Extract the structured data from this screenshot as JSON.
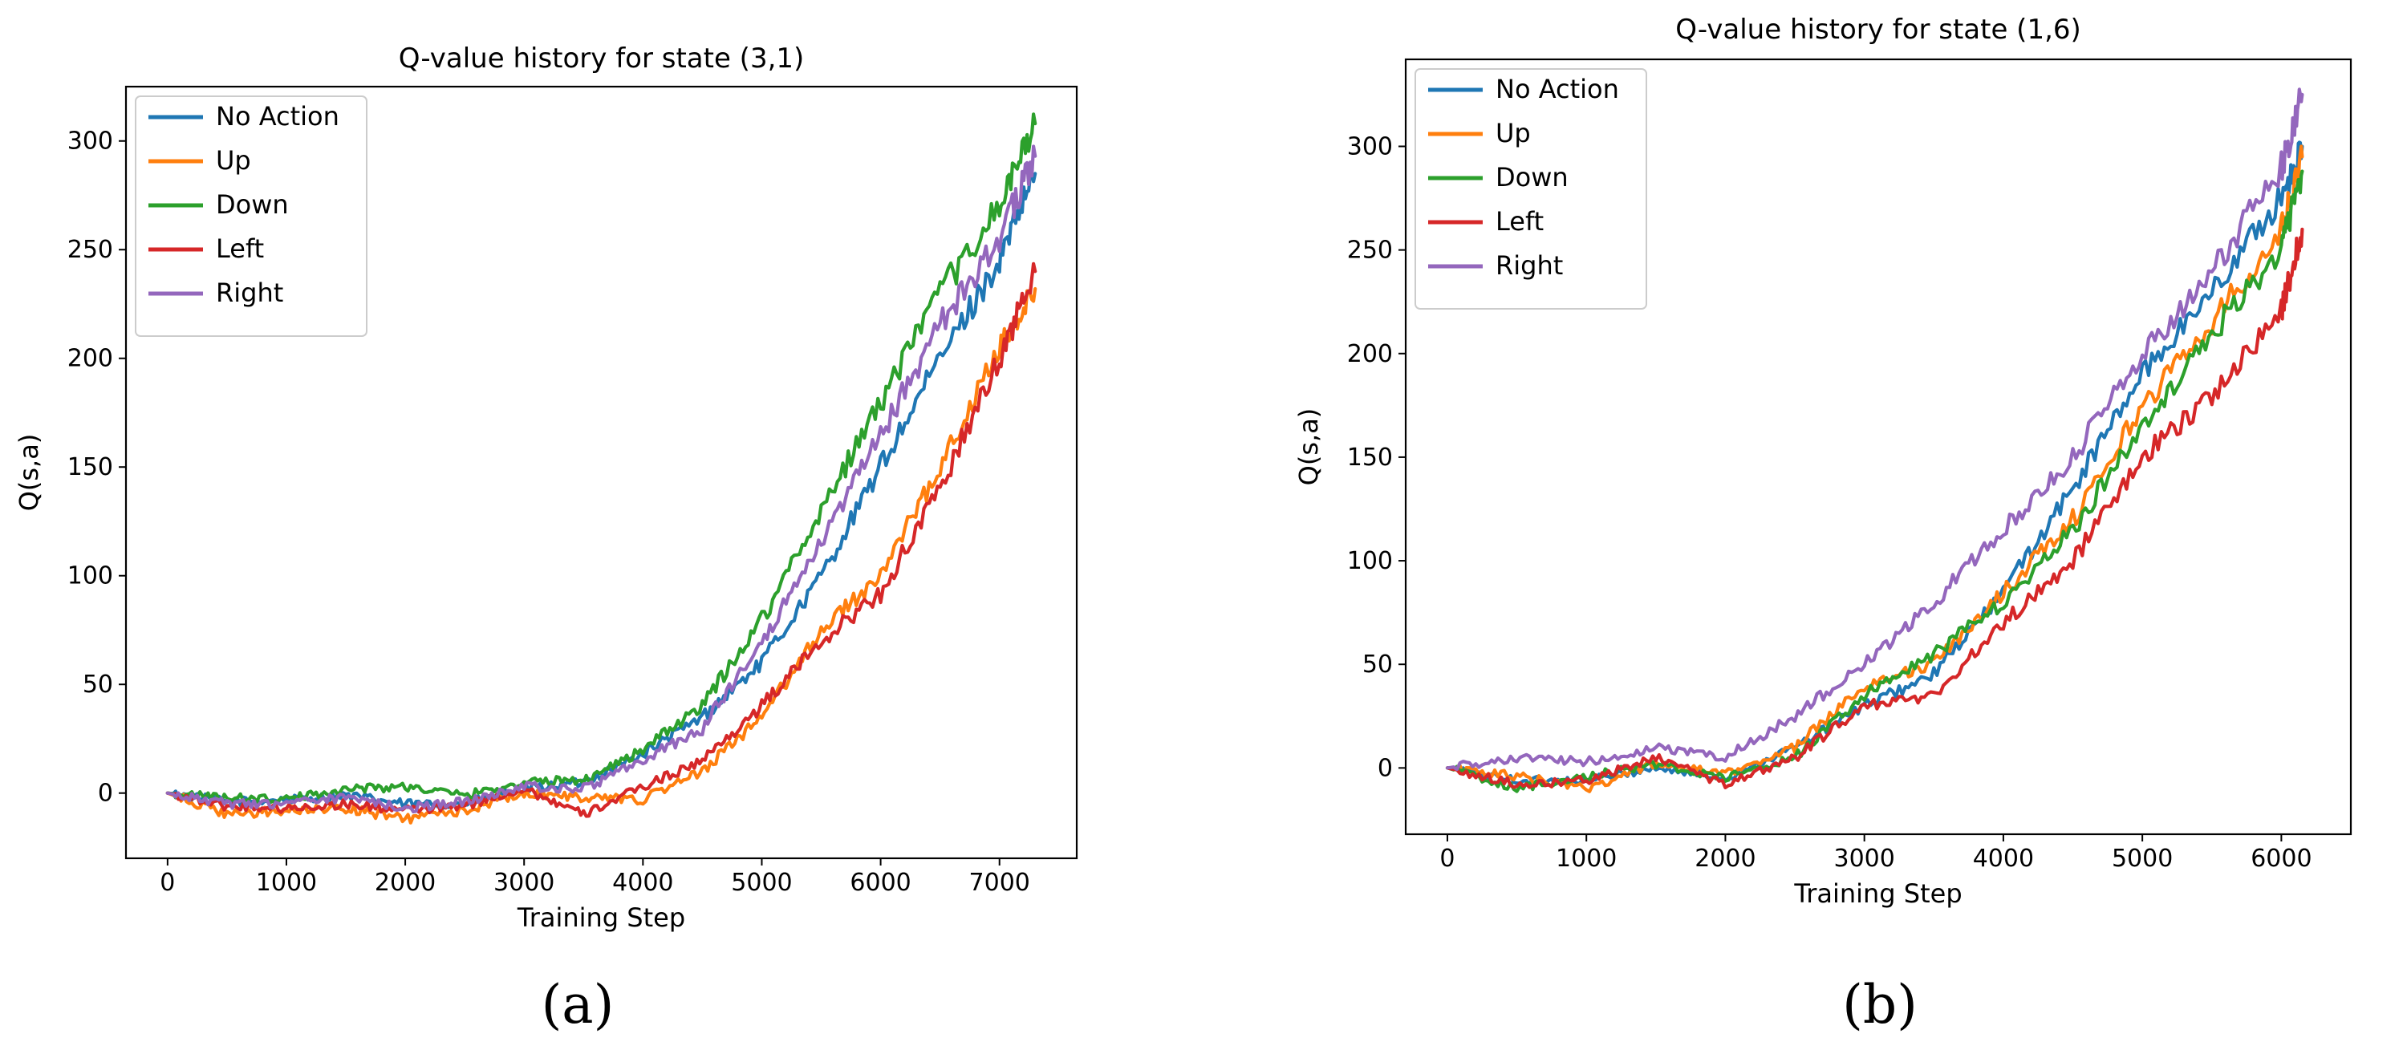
{
  "colors": {
    "no_action": "#1f77b4",
    "up": "#ff7f0e",
    "down": "#2ca02c",
    "left": "#d62728",
    "right": "#9467bd"
  },
  "chart_data": [
    {
      "type": "line",
      "panel_label": "(a)",
      "title": "Q-value history for state (3,1)",
      "xlabel": "Training Step",
      "ylabel": "Q(s,a)",
      "xlim": [
        -350,
        7650
      ],
      "ylim": [
        -30,
        325
      ],
      "xticks": [
        0,
        1000,
        2000,
        3000,
        4000,
        5000,
        6000,
        7000
      ],
      "yticks": [
        0,
        50,
        100,
        150,
        200,
        250,
        300
      ],
      "legend_position": "upper-left",
      "x": [
        0,
        500,
        1000,
        1500,
        2000,
        2500,
        3000,
        3500,
        4000,
        4500,
        5000,
        5500,
        6000,
        6500,
        7000,
        7300
      ],
      "series": [
        {
          "name": "No Action",
          "color_key": "no_action",
          "values": [
            0,
            -4,
            -3,
            -1,
            -5,
            -5,
            2,
            5,
            18,
            35,
            60,
            100,
            150,
            200,
            245,
            285
          ]
        },
        {
          "name": "Up",
          "color_key": "up",
          "values": [
            0,
            -10,
            -8,
            -7,
            -12,
            -8,
            0,
            -2,
            -3,
            10,
            35,
            75,
            100,
            150,
            205,
            232
          ]
        },
        {
          "name": "Down",
          "color_key": "down",
          "values": [
            0,
            -2,
            -3,
            2,
            3,
            -1,
            5,
            6,
            20,
            40,
            80,
            130,
            180,
            230,
            270,
            308
          ]
        },
        {
          "name": "Left",
          "color_key": "left",
          "values": [
            0,
            -6,
            -7,
            -5,
            -8,
            -6,
            2,
            -10,
            3,
            15,
            40,
            70,
            92,
            140,
            200,
            240
          ]
        },
        {
          "name": "Right",
          "color_key": "right",
          "values": [
            0,
            -5,
            -5,
            -2,
            -7,
            -4,
            3,
            2,
            15,
            30,
            70,
            115,
            165,
            215,
            255,
            293
          ]
        }
      ]
    },
    {
      "type": "line",
      "panel_label": "(b)",
      "title": "Q-value history for state (1,6)",
      "xlabel": "Training Step",
      "ylabel": "Q(s,a)",
      "xlim": [
        -300,
        6500
      ],
      "ylim": [
        -32,
        342
      ],
      "xticks": [
        0,
        1000,
        2000,
        3000,
        4000,
        5000,
        6000
      ],
      "yticks": [
        0,
        50,
        100,
        150,
        200,
        250,
        300
      ],
      "legend_position": "upper-left",
      "x": [
        0,
        500,
        1000,
        1500,
        2000,
        2500,
        3000,
        3500,
        4000,
        4500,
        5000,
        5500,
        6000,
        6150
      ],
      "series": [
        {
          "name": "No Action",
          "color_key": "no_action",
          "values": [
            0,
            -6,
            -6,
            0,
            -5,
            10,
            30,
            45,
            85,
            135,
            190,
            230,
            275,
            300
          ]
        },
        {
          "name": "Up",
          "color_key": "up",
          "values": [
            0,
            -4,
            -10,
            2,
            -3,
            10,
            40,
            50,
            85,
            120,
            175,
            215,
            260,
            295
          ]
        },
        {
          "name": "Down",
          "color_key": "down",
          "values": [
            0,
            -10,
            -4,
            2,
            -5,
            5,
            35,
            55,
            80,
            115,
            165,
            210,
            250,
            288
          ]
        },
        {
          "name": "Left",
          "color_key": "left",
          "values": [
            0,
            -8,
            -6,
            5,
            -8,
            5,
            30,
            35,
            70,
            100,
            150,
            180,
            220,
            260
          ]
        },
        {
          "name": "Right",
          "color_key": "right",
          "values": [
            0,
            5,
            3,
            10,
            5,
            25,
            50,
            80,
            115,
            150,
            200,
            240,
            290,
            325
          ]
        }
      ]
    }
  ]
}
